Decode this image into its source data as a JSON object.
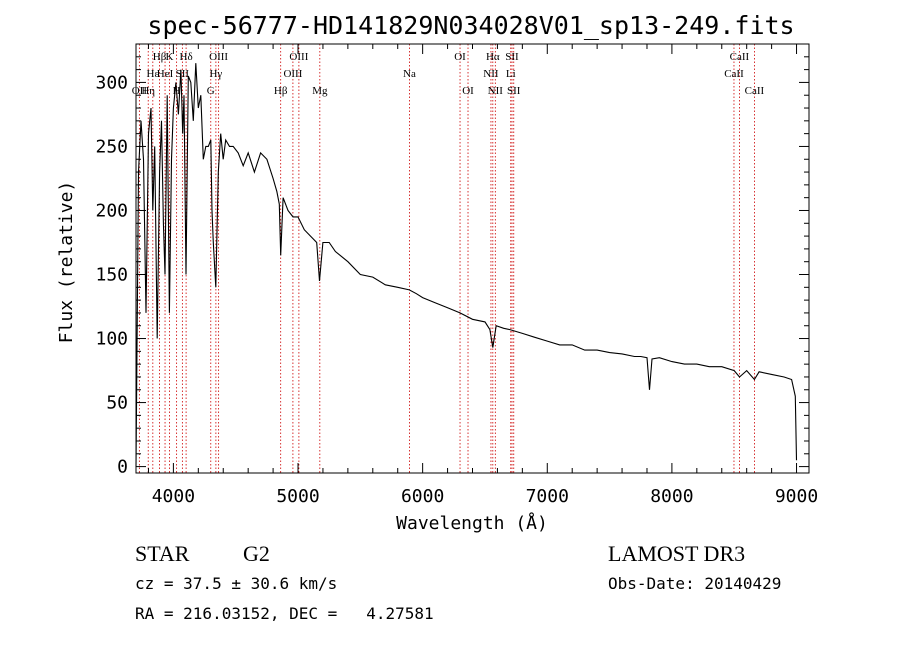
{
  "chart_data": {
    "type": "line",
    "title": "spec-56777-HD141829N034028V01_sp13-249.fits",
    "xlabel": "Wavelength (Å)",
    "ylabel": "Flux (relative)",
    "xlim": [
      3700,
      9100
    ],
    "ylim": [
      -5,
      330
    ],
    "x_ticks": [
      4000,
      5000,
      6000,
      7000,
      8000,
      9000
    ],
    "y_ticks": [
      0,
      50,
      100,
      150,
      200,
      250,
      300
    ],
    "line_color": "#000000",
    "marker_color": "#cc0000",
    "series": [
      {
        "name": "flux",
        "x": [
          3700,
          3720,
          3740,
          3760,
          3780,
          3800,
          3820,
          3835,
          3850,
          3870,
          3889,
          3905,
          3920,
          3933,
          3950,
          3968,
          3985,
          4000,
          4020,
          4040,
          4060,
          4075,
          4085,
          4101,
          4120,
          4140,
          4160,
          4180,
          4200,
          4220,
          4240,
          4260,
          4280,
          4300,
          4310,
          4320,
          4340,
          4360,
          4380,
          4400,
          4420,
          4450,
          4480,
          4520,
          4560,
          4600,
          4650,
          4700,
          4750,
          4800,
          4830,
          4850,
          4861,
          4880,
          4920,
          4960,
          5000,
          5050,
          5100,
          5150,
          5172,
          5200,
          5250,
          5300,
          5400,
          5500,
          5600,
          5700,
          5800,
          5893,
          5950,
          6000,
          6100,
          6200,
          6300,
          6400,
          6500,
          6540,
          6563,
          6590,
          6650,
          6700,
          6800,
          6900,
          7000,
          7100,
          7200,
          7300,
          7400,
          7500,
          7600,
          7700,
          7750,
          7800,
          7820,
          7840,
          7900,
          8000,
          8100,
          8200,
          8300,
          8400,
          8500,
          8542,
          8600,
          8662,
          8700,
          8800,
          8900,
          8960,
          8990,
          9000
        ],
        "values": [
          0,
          230,
          270,
          240,
          120,
          260,
          280,
          200,
          250,
          100,
          230,
          270,
          190,
          150,
          290,
          120,
          240,
          280,
          300,
          275,
          310,
          260,
          290,
          150,
          305,
          300,
          270,
          315,
          280,
          290,
          240,
          250,
          250,
          255,
          200,
          175,
          140,
          230,
          260,
          240,
          255,
          250,
          250,
          245,
          235,
          245,
          230,
          245,
          240,
          225,
          215,
          205,
          165,
          210,
          200,
          195,
          195,
          185,
          180,
          175,
          145,
          175,
          175,
          168,
          160,
          150,
          148,
          142,
          140,
          138,
          135,
          132,
          128,
          124,
          120,
          115,
          113,
          107,
          93,
          110,
          108,
          107,
          104,
          101,
          98,
          95,
          95,
          91,
          91,
          89,
          88,
          86,
          86,
          85,
          60,
          84,
          85,
          82,
          80,
          80,
          78,
          78,
          75,
          70,
          75,
          68,
          74,
          72,
          70,
          68,
          55,
          5
        ]
      }
    ],
    "lines": [
      {
        "wl": 3727,
        "labels": [
          "OII"
        ],
        "tiers": [
          2
        ]
      },
      {
        "wl": 3798,
        "labels": [
          "Hη"
        ],
        "tiers": [
          2
        ]
      },
      {
        "wl": 3835,
        "labels": [
          "Hε"
        ],
        "tiers": [
          1
        ]
      },
      {
        "wl": 3889,
        "labels": [
          "Hβ"
        ],
        "tiers": [
          0
        ]
      },
      {
        "wl": 3933,
        "labels": [
          "HeI"
        ],
        "tiers": [
          1
        ]
      },
      {
        "wl": 3969,
        "labels": [
          "K"
        ],
        "tiers": [
          0
        ]
      },
      {
        "wl": 4026,
        "labels": [
          "H"
        ],
        "tiers": [
          2
        ]
      },
      {
        "wl": 4072,
        "labels": [
          "SII"
        ],
        "tiers": [
          1
        ]
      },
      {
        "wl": 4102,
        "labels": [
          "Hδ"
        ],
        "tiers": [
          0
        ]
      },
      {
        "wl": 4300,
        "labels": [
          "G"
        ],
        "tiers": [
          2
        ]
      },
      {
        "wl": 4341,
        "labels": [
          "Hγ"
        ],
        "tiers": [
          1
        ]
      },
      {
        "wl": 4363,
        "labels": [
          "OIII"
        ],
        "tiers": [
          0
        ]
      },
      {
        "wl": 4861,
        "labels": [
          "Hβ"
        ],
        "tiers": [
          2
        ]
      },
      {
        "wl": 4959,
        "labels": [
          "OIII"
        ],
        "tiers": [
          1
        ]
      },
      {
        "wl": 5007,
        "labels": [
          "OIII"
        ],
        "tiers": [
          0
        ]
      },
      {
        "wl": 5175,
        "labels": [
          "Mg"
        ],
        "tiers": [
          2
        ]
      },
      {
        "wl": 5894,
        "labels": [
          "Na"
        ],
        "tiers": [
          1
        ]
      },
      {
        "wl": 6300,
        "labels": [
          "OI"
        ],
        "tiers": [
          0
        ]
      },
      {
        "wl": 6364,
        "labels": [
          "OI"
        ],
        "tiers": [
          2
        ]
      },
      {
        "wl": 6548,
        "labels": [
          "NII"
        ],
        "tiers": [
          1
        ]
      },
      {
        "wl": 6563,
        "labels": [
          "Hα"
        ],
        "tiers": [
          0
        ]
      },
      {
        "wl": 6583,
        "labels": [
          "NII"
        ],
        "tiers": [
          2
        ]
      },
      {
        "wl": 6707,
        "labels": [
          "Li"
        ],
        "tiers": [
          1
        ]
      },
      {
        "wl": 6717,
        "labels": [
          "SII"
        ],
        "tiers": [
          0
        ]
      },
      {
        "wl": 6731,
        "labels": [
          "SII"
        ],
        "tiers": [
          2
        ]
      },
      {
        "wl": 8498,
        "labels": [
          "CaII"
        ],
        "tiers": [
          1
        ]
      },
      {
        "wl": 8542,
        "labels": [
          "CaII"
        ],
        "tiers": [
          0
        ]
      },
      {
        "wl": 8662,
        "labels": [
          "CaII"
        ],
        "tiers": [
          2
        ]
      }
    ]
  },
  "info": {
    "class_label": "STAR",
    "subclass": "G2",
    "survey": "LAMOST DR3",
    "redshift": "cz = 37.5 ± 30.6 km/s",
    "obs_date": "Obs-Date: 20140429",
    "coords": "RA = 216.03152, DEC =   4.27581"
  }
}
